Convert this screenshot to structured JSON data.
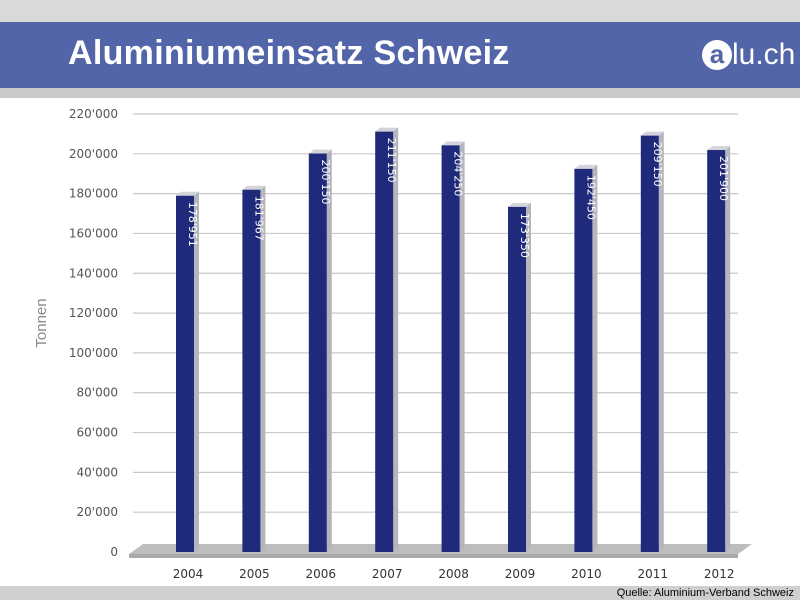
{
  "header": {
    "title": "Aluminiumeinsatz Schweiz",
    "logo_a": "a",
    "logo_rest": "lu.ch"
  },
  "footer": {
    "source": "Quelle: Aluminium-Verband Schweiz"
  },
  "colors": {
    "banner": "#5165a8",
    "bar_front": "#1f2a7a",
    "bar_side": "#b5b5bd",
    "grid": "#c8c8c8"
  },
  "chart_data": {
    "type": "bar",
    "categories": [
      "2004",
      "2005",
      "2006",
      "2007",
      "2008",
      "2009",
      "2010",
      "2011",
      "2012"
    ],
    "values": [
      178951,
      181967,
      200150,
      211150,
      204250,
      173350,
      192450,
      209150,
      201900
    ],
    "value_labels": [
      "178'951",
      "181'967",
      "200'150",
      "211'150",
      "204'250",
      "173'350",
      "192'450",
      "209'150",
      "201'900"
    ],
    "ylabel": "Tonnen",
    "ylim": [
      0,
      220000
    ],
    "yticks": [
      0,
      20000,
      40000,
      60000,
      80000,
      100000,
      120000,
      140000,
      160000,
      180000,
      200000,
      220000
    ],
    "ytick_labels": [
      "0",
      "20'000",
      "40'000",
      "60'000",
      "80'000",
      "100'000",
      "120'000",
      "140'000",
      "160'000",
      "180'000",
      "200'000",
      "220'000"
    ],
    "grid": true
  }
}
